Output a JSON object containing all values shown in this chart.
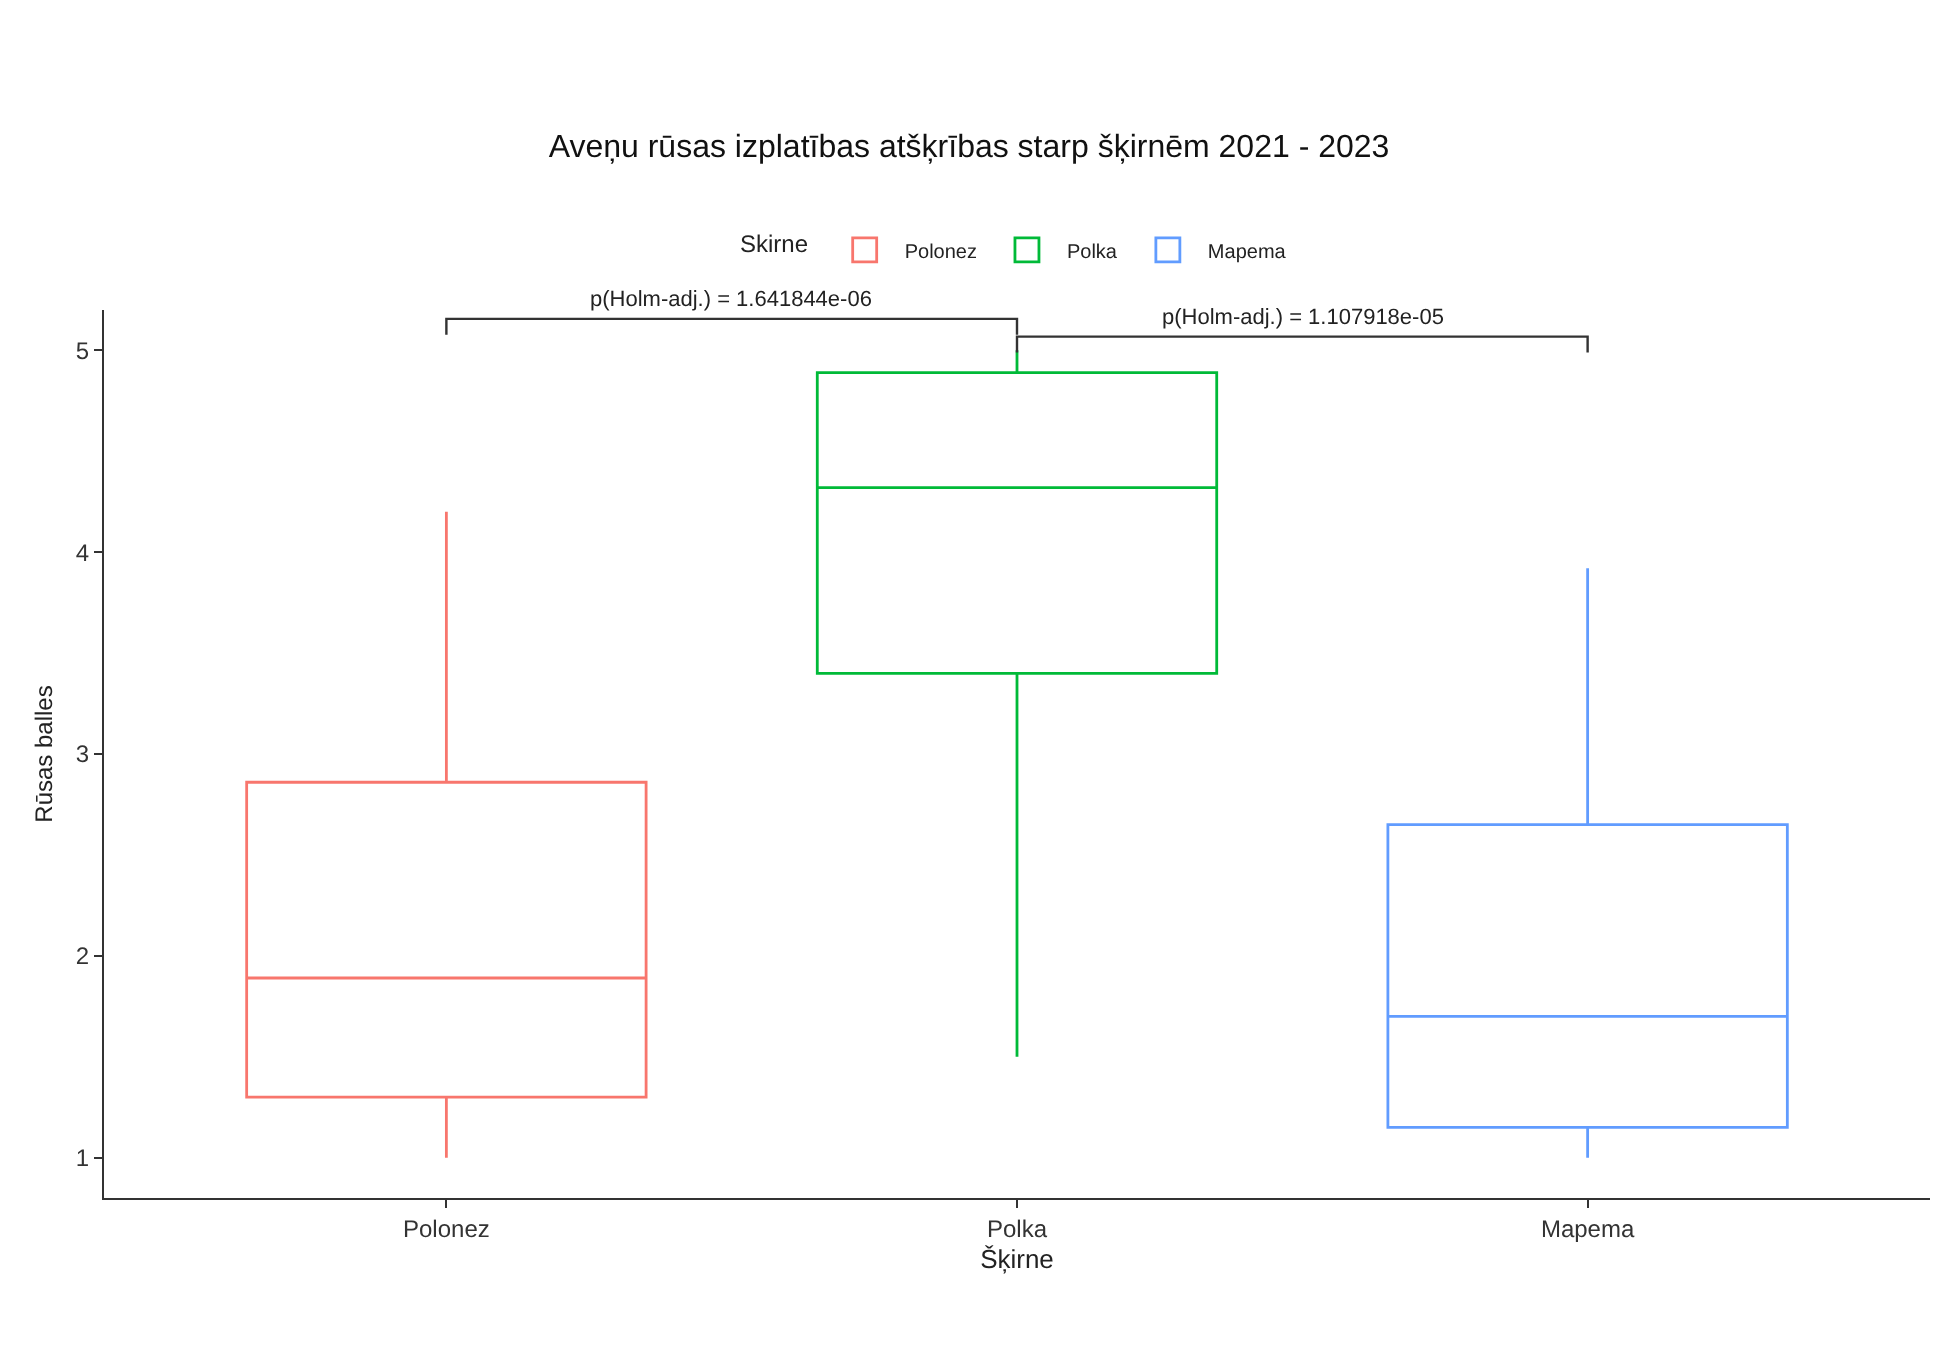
{
  "chart_data": {
    "type": "box",
    "title": "Aveņu rūsas izplatības atšķrības starp šķirnēm 2021 - 2023",
    "xlabel": "Šķirne",
    "ylabel": "Rūsas balles",
    "legend_title": "Skirne",
    "legend": "top",
    "categories": [
      "Polonez",
      "Polka",
      "Mapema"
    ],
    "series": [
      {
        "name": "Polonez",
        "color": "#f8766d",
        "boxes": [
          {
            "low": 1.0,
            "q1": 1.3,
            "median": 1.89,
            "q3": 2.86,
            "high": 4.2
          },
          null,
          null
        ]
      },
      {
        "name": "Polka",
        "color": "#00ba38",
        "boxes": [
          null,
          {
            "low": 1.5,
            "q1": 3.4,
            "median": 4.32,
            "q3": 4.89,
            "high": 5.0
          },
          null
        ]
      },
      {
        "name": "Mapema",
        "color": "#619cff",
        "boxes": [
          null,
          null,
          {
            "low": 1.0,
            "q1": 1.15,
            "median": 1.7,
            "q3": 2.65,
            "high": 3.92
          }
        ]
      }
    ],
    "ylim": [
      0.8,
      5.2
    ],
    "yticks": [
      1,
      2,
      3,
      4,
      5
    ],
    "annotations": [
      "p(Holm-adj.) = 1.641844e-06",
      "p(Holm-adj.) = 1.107918e-05"
    ]
  }
}
